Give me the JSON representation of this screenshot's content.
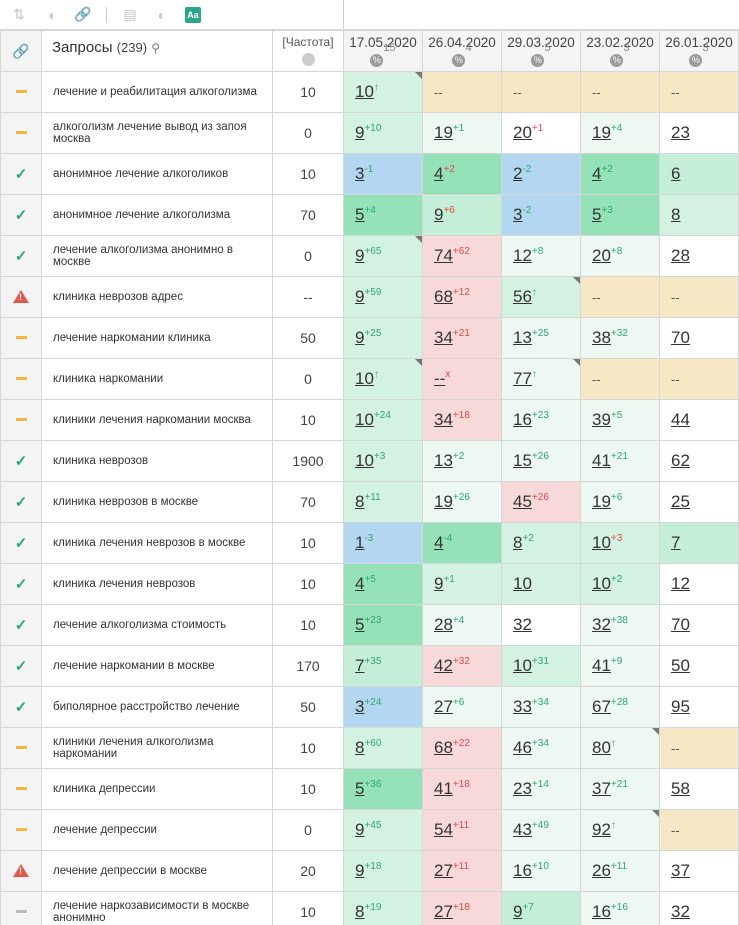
{
  "toolbar": {
    "icons": [
      "sort-icon",
      "toggle-icon",
      "link-icon",
      "window-icon",
      "contrast-icon",
      "font-icon"
    ],
    "font_label": "Aa"
  },
  "header": {
    "query_title": "Запросы",
    "query_count": "(239)",
    "freq_label": "[Частота]",
    "dates": [
      {
        "date": "17.05.2020",
        "pct": "15"
      },
      {
        "date": "26.04.2020",
        "pct": "4"
      },
      {
        "date": "29.03.2020",
        "pct": "5"
      },
      {
        "date": "23.02.2020",
        "pct": "3"
      },
      {
        "date": "26.01.2020",
        "pct": "3"
      }
    ]
  },
  "colors": {
    "accent_green": "#28a879",
    "warning_red": "#e05a4a",
    "dash_orange": "#f0b640"
  },
  "rows": [
    {
      "status": "dash-orange",
      "query": "лечение и реабилитация алкоголизма",
      "freq": "10",
      "cells": [
        {
          "v": "10",
          "c": "↑",
          "d": "up",
          "bg": "g1",
          "corner": true
        },
        {
          "v": "--",
          "plain": true,
          "bg": "y"
        },
        {
          "v": "--",
          "plain": true,
          "bg": "y"
        },
        {
          "v": "--",
          "plain": true,
          "bg": "y"
        },
        {
          "v": "--",
          "plain": true,
          "bg": "y"
        }
      ]
    },
    {
      "status": "dash-orange",
      "query": "алкоголизм лечение вывод из запоя москва",
      "freq": "0",
      "cells": [
        {
          "v": "9",
          "c": "+10",
          "d": "up",
          "bg": "g1"
        },
        {
          "v": "19",
          "c": "+1",
          "d": "up",
          "bg": "g0"
        },
        {
          "v": "20",
          "c": "+1",
          "d": "dn",
          "bg": "w"
        },
        {
          "v": "19",
          "c": "+4",
          "d": "up",
          "bg": "g0"
        },
        {
          "v": "23",
          "bg": "w"
        }
      ]
    },
    {
      "status": "check",
      "query": "анонимное лечение алкоголиков",
      "freq": "10",
      "cells": [
        {
          "v": "3",
          "c": "-1",
          "d": "up",
          "bg": "b"
        },
        {
          "v": "4",
          "c": "+2",
          "d": "dn",
          "bg": "g3"
        },
        {
          "v": "2",
          "c": "-2",
          "d": "up",
          "bg": "b"
        },
        {
          "v": "4",
          "c": "+2",
          "d": "up",
          "bg": "g3"
        },
        {
          "v": "6",
          "bg": "g2"
        }
      ]
    },
    {
      "status": "check",
      "query": "анонимное лечение алкоголизма",
      "freq": "70",
      "cells": [
        {
          "v": "5",
          "c": "+4",
          "d": "up",
          "bg": "g3"
        },
        {
          "v": "9",
          "c": "+6",
          "d": "dn",
          "bg": "g2"
        },
        {
          "v": "3",
          "c": "-2",
          "d": "up",
          "bg": "b"
        },
        {
          "v": "5",
          "c": "+3",
          "d": "up",
          "bg": "g3"
        },
        {
          "v": "8",
          "bg": "g1"
        }
      ]
    },
    {
      "status": "check",
      "query": "лечение алкоголизма анонимно в москве",
      "freq": "0",
      "cells": [
        {
          "v": "9",
          "c": "+65",
          "d": "up",
          "bg": "g1",
          "corner": true
        },
        {
          "v": "74",
          "c": "+62",
          "d": "dn",
          "bg": "p"
        },
        {
          "v": "12",
          "c": "+8",
          "d": "up",
          "bg": "g0"
        },
        {
          "v": "20",
          "c": "+8",
          "d": "up",
          "bg": "g0"
        },
        {
          "v": "28",
          "bg": "w"
        }
      ]
    },
    {
      "status": "warn",
      "query": "клиника неврозов адрес",
      "freq": "--",
      "cells": [
        {
          "v": "9",
          "c": "+59",
          "d": "up",
          "bg": "g1"
        },
        {
          "v": "68",
          "c": "+12",
          "d": "dn",
          "bg": "p"
        },
        {
          "v": "56",
          "c": "↑",
          "d": "up",
          "bg": "g1",
          "corner": true
        },
        {
          "v": "--",
          "plain": true,
          "bg": "y"
        },
        {
          "v": "--",
          "plain": true,
          "bg": "y"
        }
      ]
    },
    {
      "status": "dash-orange",
      "query": "лечение наркомании клиника",
      "freq": "50",
      "cells": [
        {
          "v": "9",
          "c": "+25",
          "d": "up",
          "bg": "g1"
        },
        {
          "v": "34",
          "c": "+21",
          "d": "dn",
          "bg": "p"
        },
        {
          "v": "13",
          "c": "+25",
          "d": "up",
          "bg": "g0"
        },
        {
          "v": "38",
          "c": "+32",
          "d": "up",
          "bg": "g0"
        },
        {
          "v": "70",
          "bg": "w"
        }
      ]
    },
    {
      "status": "dash-orange",
      "query": "клиника наркомании",
      "freq": "0",
      "cells": [
        {
          "v": "10",
          "c": "↑",
          "d": "up",
          "bg": "g1",
          "corner": true
        },
        {
          "v": "--",
          "c": "x",
          "d": "dn",
          "bg": "p"
        },
        {
          "v": "77",
          "c": "↑",
          "d": "up",
          "bg": "g0",
          "corner": true
        },
        {
          "v": "--",
          "plain": true,
          "bg": "y"
        },
        {
          "v": "--",
          "plain": true,
          "bg": "y"
        }
      ]
    },
    {
      "status": "dash-orange",
      "query": "клиники лечения наркомании москва",
      "freq": "10",
      "cells": [
        {
          "v": "10",
          "c": "+24",
          "d": "up",
          "bg": "g1"
        },
        {
          "v": "34",
          "c": "+18",
          "d": "dn",
          "bg": "p"
        },
        {
          "v": "16",
          "c": "+23",
          "d": "up",
          "bg": "g0"
        },
        {
          "v": "39",
          "c": "+5",
          "d": "up",
          "bg": "g0"
        },
        {
          "v": "44",
          "bg": "w"
        }
      ]
    },
    {
      "status": "check",
      "query": "клиника неврозов",
      "freq": "1900",
      "cells": [
        {
          "v": "10",
          "c": "+3",
          "d": "up",
          "bg": "g1"
        },
        {
          "v": "13",
          "c": "+2",
          "d": "up",
          "bg": "g0"
        },
        {
          "v": "15",
          "c": "+26",
          "d": "up",
          "bg": "g0"
        },
        {
          "v": "41",
          "c": "+21",
          "d": "up",
          "bg": "g0"
        },
        {
          "v": "62",
          "bg": "w"
        }
      ]
    },
    {
      "status": "check",
      "query": "клиника неврозов в москве",
      "freq": "70",
      "cells": [
        {
          "v": "8",
          "c": "+11",
          "d": "up",
          "bg": "g1"
        },
        {
          "v": "19",
          "c": "+26",
          "d": "up",
          "bg": "g0"
        },
        {
          "v": "45",
          "c": "+26",
          "d": "dn",
          "bg": "p"
        },
        {
          "v": "19",
          "c": "+6",
          "d": "up",
          "bg": "g0"
        },
        {
          "v": "25",
          "bg": "w"
        }
      ]
    },
    {
      "status": "check",
      "query": "клиника лечения неврозов в москве",
      "freq": "10",
      "cells": [
        {
          "v": "1",
          "c": "-3",
          "d": "up",
          "bg": "b"
        },
        {
          "v": "4",
          "c": "-4",
          "d": "up",
          "bg": "g3"
        },
        {
          "v": "8",
          "c": "+2",
          "d": "up",
          "bg": "g1"
        },
        {
          "v": "10",
          "c": "+3",
          "d": "dn",
          "bg": "g1"
        },
        {
          "v": "7",
          "bg": "g2"
        }
      ]
    },
    {
      "status": "check",
      "query": "клиника лечения неврозов",
      "freq": "10",
      "cells": [
        {
          "v": "4",
          "c": "+5",
          "d": "up",
          "bg": "g3"
        },
        {
          "v": "9",
          "c": "+1",
          "d": "up",
          "bg": "g1"
        },
        {
          "v": "10",
          "bg": "g1"
        },
        {
          "v": "10",
          "c": "+2",
          "d": "up",
          "bg": "g1"
        },
        {
          "v": "12",
          "bg": "w"
        }
      ]
    },
    {
      "status": "check",
      "query": "лечение алкоголизма стоимость",
      "freq": "10",
      "cells": [
        {
          "v": "5",
          "c": "+23",
          "d": "up",
          "bg": "g3"
        },
        {
          "v": "28",
          "c": "+4",
          "d": "up",
          "bg": "g0"
        },
        {
          "v": "32",
          "bg": "w"
        },
        {
          "v": "32",
          "c": "+38",
          "d": "up",
          "bg": "g0"
        },
        {
          "v": "70",
          "bg": "w"
        }
      ]
    },
    {
      "status": "check",
      "query": "лечение наркомании в москве",
      "freq": "170",
      "cells": [
        {
          "v": "7",
          "c": "+35",
          "d": "up",
          "bg": "g2"
        },
        {
          "v": "42",
          "c": "+32",
          "d": "dn",
          "bg": "p"
        },
        {
          "v": "10",
          "c": "+31",
          "d": "up",
          "bg": "g1"
        },
        {
          "v": "41",
          "c": "+9",
          "d": "up",
          "bg": "g0"
        },
        {
          "v": "50",
          "bg": "w"
        }
      ]
    },
    {
      "status": "check",
      "query": "биполярное расстройство лечение",
      "freq": "50",
      "cells": [
        {
          "v": "3",
          "c": "+24",
          "d": "up",
          "bg": "b"
        },
        {
          "v": "27",
          "c": "+6",
          "d": "up",
          "bg": "g0"
        },
        {
          "v": "33",
          "c": "+34",
          "d": "up",
          "bg": "g0"
        },
        {
          "v": "67",
          "c": "+28",
          "d": "up",
          "bg": "g0"
        },
        {
          "v": "95",
          "bg": "w"
        }
      ]
    },
    {
      "status": "dash-orange",
      "query": "клиники лечения алкоголизма наркомании",
      "freq": "10",
      "cells": [
        {
          "v": "8",
          "c": "+60",
          "d": "up",
          "bg": "g1"
        },
        {
          "v": "68",
          "c": "+22",
          "d": "dn",
          "bg": "p"
        },
        {
          "v": "46",
          "c": "+34",
          "d": "up",
          "bg": "g0"
        },
        {
          "v": "80",
          "c": "↑",
          "d": "up",
          "bg": "g0",
          "corner": true
        },
        {
          "v": "--",
          "plain": true,
          "bg": "y"
        }
      ]
    },
    {
      "status": "dash-orange",
      "query": "клиника депрессии",
      "freq": "10",
      "cells": [
        {
          "v": "5",
          "c": "+36",
          "d": "up",
          "bg": "g3"
        },
        {
          "v": "41",
          "c": "+18",
          "d": "dn",
          "bg": "p"
        },
        {
          "v": "23",
          "c": "+14",
          "d": "up",
          "bg": "g0"
        },
        {
          "v": "37",
          "c": "+21",
          "d": "up",
          "bg": "g0"
        },
        {
          "v": "58",
          "bg": "w"
        }
      ]
    },
    {
      "status": "dash-orange",
      "query": "лечение депрессии",
      "freq": "0",
      "cells": [
        {
          "v": "9",
          "c": "+45",
          "d": "up",
          "bg": "g1"
        },
        {
          "v": "54",
          "c": "+11",
          "d": "dn",
          "bg": "p"
        },
        {
          "v": "43",
          "c": "+49",
          "d": "up",
          "bg": "g0"
        },
        {
          "v": "92",
          "c": "↑",
          "d": "up",
          "bg": "g0",
          "corner": true
        },
        {
          "v": "--",
          "plain": true,
          "bg": "y"
        }
      ]
    },
    {
      "status": "warn",
      "query": "лечение депрессии в москве",
      "freq": "20",
      "cells": [
        {
          "v": "9",
          "c": "+18",
          "d": "up",
          "bg": "g1"
        },
        {
          "v": "27",
          "c": "+11",
          "d": "dn",
          "bg": "p"
        },
        {
          "v": "16",
          "c": "+10",
          "d": "up",
          "bg": "g0"
        },
        {
          "v": "26",
          "c": "+11",
          "d": "up",
          "bg": "g0"
        },
        {
          "v": "37",
          "bg": "w"
        }
      ]
    },
    {
      "status": "dash-gray",
      "query": "лечение наркозависимости в москве анонимно",
      "freq": "10",
      "cells": [
        {
          "v": "8",
          "c": "+19",
          "d": "up",
          "bg": "g1"
        },
        {
          "v": "27",
          "c": "+18",
          "d": "dn",
          "bg": "p"
        },
        {
          "v": "9",
          "c": "+7",
          "d": "up",
          "bg": "g2"
        },
        {
          "v": "16",
          "c": "+16",
          "d": "up",
          "bg": "g0"
        },
        {
          "v": "32",
          "bg": "w"
        }
      ]
    }
  ]
}
